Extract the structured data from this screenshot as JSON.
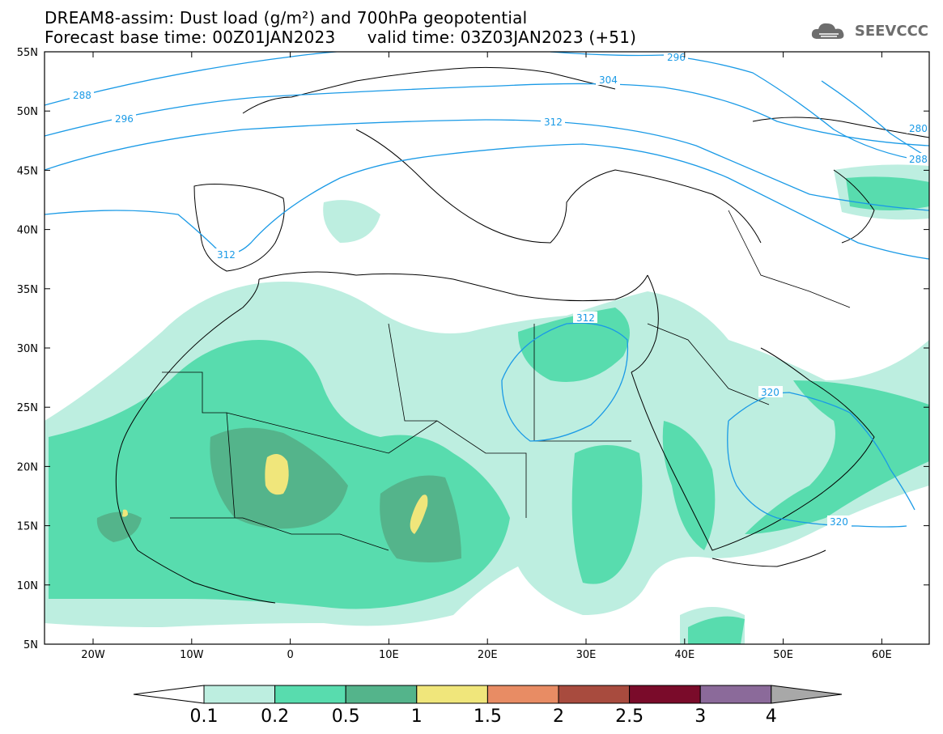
{
  "title": {
    "line1": "DREAM8-assim: Dust load (g/m²) and 700hPa geopotential",
    "line2_left": "Forecast base time: 00Z01JAN2023",
    "line2_right": "valid time: 03Z03JAN2023 (+51)"
  },
  "logo": {
    "text": "SEEVCCC",
    "icon": "cloud-icon"
  },
  "axes": {
    "lat_labels": [
      "55N",
      "50N",
      "45N",
      "40N",
      "35N",
      "30N",
      "25N",
      "20N",
      "15N",
      "10N",
      "5N"
    ],
    "lon_labels": [
      "20W",
      "10W",
      "0",
      "10E",
      "20E",
      "30E",
      "40E",
      "50E",
      "60E"
    ]
  },
  "contour_labels": [
    "288",
    "296",
    "304",
    "312",
    "296",
    "280",
    "288",
    "312",
    "312",
    "320",
    "320"
  ],
  "colorbar": {
    "colors": [
      "#bdeee0",
      "#58dcae",
      "#54b48b",
      "#f0e67b",
      "#e88c64",
      "#a84b3e",
      "#7a0b2a",
      "#8b6a9a",
      "#a8a8a8"
    ],
    "labels": [
      "0.1",
      "0.2",
      "0.5",
      "1",
      "1.5",
      "2",
      "2.5",
      "3",
      "4"
    ]
  },
  "colors": {
    "contour": "#1a9ae6",
    "coast": "#000000"
  }
}
